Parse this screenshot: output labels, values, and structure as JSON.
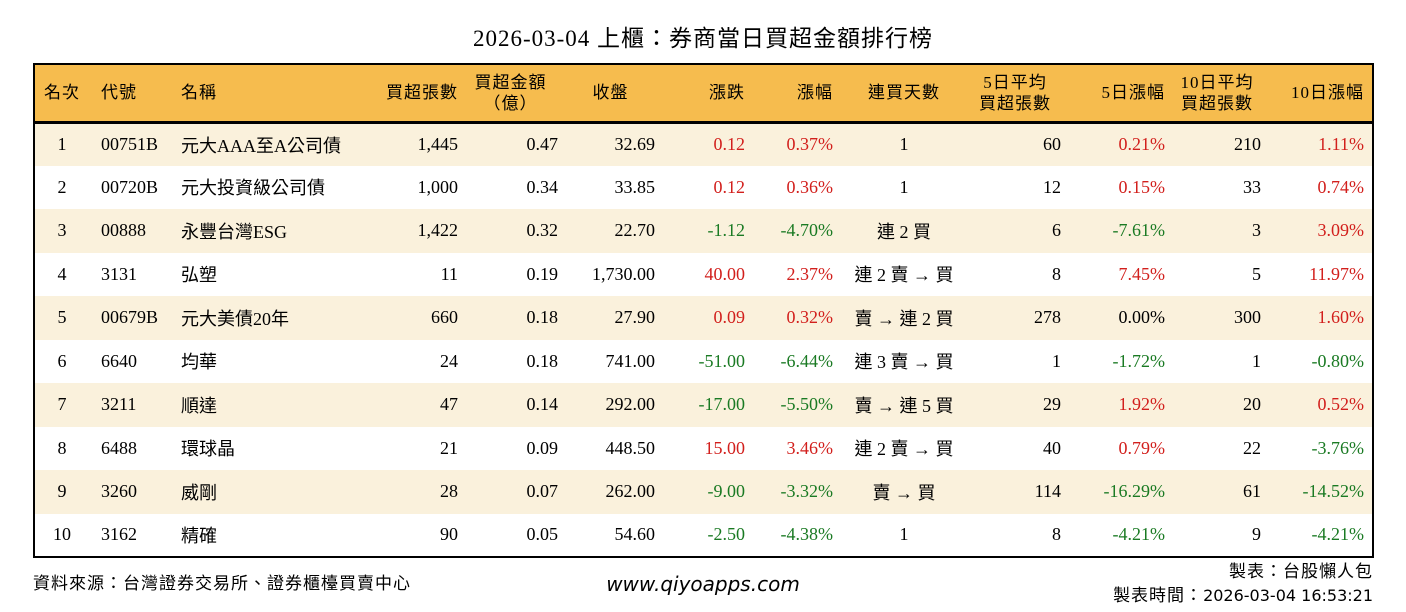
{
  "page_title": "2026-03-04 上櫃：券商當日買超金額排行榜",
  "colors": {
    "header_bg": "#F6BC4E",
    "stripe_bg": "#FAF1DC",
    "up_red": "#D21F1C",
    "down_green": "#1A7A23",
    "border": "#000000"
  },
  "color_codes_legend": {
    "k": "black",
    "r": "up_red",
    "g": "down_green"
  },
  "chart_data": {
    "type": "table",
    "title": "2026-03-04 上櫃：券商當日買超金額排行榜",
    "columns": [
      {
        "key": "rank",
        "label": "名次",
        "align": "center",
        "halign": "center",
        "width": 55,
        "pad_left": 0,
        "pad_right": 0
      },
      {
        "key": "code",
        "label": "代號",
        "align": "left",
        "halign": "left",
        "width": 80,
        "pad_left": 12,
        "pad_right": 0
      },
      {
        "key": "name",
        "label": "名稱",
        "align": "left",
        "halign": "left",
        "width": 192,
        "pad_left": 12,
        "pad_right": 0
      },
      {
        "key": "buy_volume",
        "label": "買超張數",
        "align": "right",
        "halign": "right",
        "width": 102,
        "pad_left": 0,
        "pad_right": 5
      },
      {
        "key": "buy_amount",
        "label": "買超金額\n（億）",
        "align": "right",
        "halign": "center",
        "width": 103,
        "pad_left": 0,
        "pad_right": 8
      },
      {
        "key": "close",
        "label": "收盤",
        "align": "right",
        "halign": "center",
        "width": 95,
        "pad_left": 0,
        "pad_right": 6
      },
      {
        "key": "change",
        "label": "漲跌",
        "align": "right",
        "halign": "right",
        "width": 90,
        "pad_left": 0,
        "pad_right": 6
      },
      {
        "key": "change_pct",
        "label": "漲幅",
        "align": "right",
        "halign": "right",
        "width": 88,
        "pad_left": 0,
        "pad_right": 6
      },
      {
        "key": "streak",
        "label": "連買天數",
        "align": "center",
        "halign": "center",
        "width": 130,
        "pad_left": 0,
        "pad_right": 0
      },
      {
        "key": "avg5_volume",
        "label": "5日平均\n買超張數",
        "align": "right",
        "halign": "center",
        "width": 100,
        "pad_left": 0,
        "pad_right": 8
      },
      {
        "key": "pct5",
        "label": "5日漲幅",
        "align": "right",
        "halign": "right",
        "width": 104,
        "pad_left": 0,
        "pad_right": 8
      },
      {
        "key": "avg10_volume",
        "label": "10日平均\n買超張數",
        "align": "right",
        "halign": "center",
        "width": 96,
        "pad_left": 0,
        "pad_right": 8
      },
      {
        "key": "pct10",
        "label": "10日漲幅",
        "align": "right",
        "halign": "right",
        "width": 104,
        "pad_left": 0,
        "pad_right": 8
      }
    ],
    "rows": [
      [
        [
          "1",
          "k"
        ],
        [
          "00751B",
          "k"
        ],
        [
          "元大AAA至A公司債",
          "k"
        ],
        [
          "1,445",
          "k"
        ],
        [
          "0.47",
          "k"
        ],
        [
          "32.69",
          "k"
        ],
        [
          "0.12",
          "r"
        ],
        [
          "0.37%",
          "r"
        ],
        [
          "1",
          "k"
        ],
        [
          "60",
          "k"
        ],
        [
          "0.21%",
          "r"
        ],
        [
          "210",
          "k"
        ],
        [
          "1.11%",
          "r"
        ]
      ],
      [
        [
          "2",
          "k"
        ],
        [
          "00720B",
          "k"
        ],
        [
          "元大投資級公司債",
          "k"
        ],
        [
          "1,000",
          "k"
        ],
        [
          "0.34",
          "k"
        ],
        [
          "33.85",
          "k"
        ],
        [
          "0.12",
          "r"
        ],
        [
          "0.36%",
          "r"
        ],
        [
          "1",
          "k"
        ],
        [
          "12",
          "k"
        ],
        [
          "0.15%",
          "r"
        ],
        [
          "33",
          "k"
        ],
        [
          "0.74%",
          "r"
        ]
      ],
      [
        [
          "3",
          "k"
        ],
        [
          "00888",
          "k"
        ],
        [
          "永豐台灣ESG",
          "k"
        ],
        [
          "1,422",
          "k"
        ],
        [
          "0.32",
          "k"
        ],
        [
          "22.70",
          "k"
        ],
        [
          "-1.12",
          "g"
        ],
        [
          "-4.70%",
          "g"
        ],
        [
          "連 2 買",
          "k"
        ],
        [
          "6",
          "k"
        ],
        [
          "-7.61%",
          "g"
        ],
        [
          "3",
          "k"
        ],
        [
          "3.09%",
          "r"
        ]
      ],
      [
        [
          "4",
          "k"
        ],
        [
          "3131",
          "k"
        ],
        [
          "弘塑",
          "k"
        ],
        [
          "11",
          "k"
        ],
        [
          "0.19",
          "k"
        ],
        [
          "1,730.00",
          "k"
        ],
        [
          "40.00",
          "r"
        ],
        [
          "2.37%",
          "r"
        ],
        [
          "連 2 賣 → 買",
          "k"
        ],
        [
          "8",
          "k"
        ],
        [
          "7.45%",
          "r"
        ],
        [
          "5",
          "k"
        ],
        [
          "11.97%",
          "r"
        ]
      ],
      [
        [
          "5",
          "k"
        ],
        [
          "00679B",
          "k"
        ],
        [
          "元大美債20年",
          "k"
        ],
        [
          "660",
          "k"
        ],
        [
          "0.18",
          "k"
        ],
        [
          "27.90",
          "k"
        ],
        [
          "0.09",
          "r"
        ],
        [
          "0.32%",
          "r"
        ],
        [
          "賣 → 連 2 買",
          "k"
        ],
        [
          "278",
          "k"
        ],
        [
          "0.00%",
          "k"
        ],
        [
          "300",
          "k"
        ],
        [
          "1.60%",
          "r"
        ]
      ],
      [
        [
          "6",
          "k"
        ],
        [
          "6640",
          "k"
        ],
        [
          "均華",
          "k"
        ],
        [
          "24",
          "k"
        ],
        [
          "0.18",
          "k"
        ],
        [
          "741.00",
          "k"
        ],
        [
          "-51.00",
          "g"
        ],
        [
          "-6.44%",
          "g"
        ],
        [
          "連 3 賣 → 買",
          "k"
        ],
        [
          "1",
          "k"
        ],
        [
          "-1.72%",
          "g"
        ],
        [
          "1",
          "k"
        ],
        [
          "-0.80%",
          "g"
        ]
      ],
      [
        [
          "7",
          "k"
        ],
        [
          "3211",
          "k"
        ],
        [
          "順達",
          "k"
        ],
        [
          "47",
          "k"
        ],
        [
          "0.14",
          "k"
        ],
        [
          "292.00",
          "k"
        ],
        [
          "-17.00",
          "g"
        ],
        [
          "-5.50%",
          "g"
        ],
        [
          "賣 → 連 5 買",
          "k"
        ],
        [
          "29",
          "k"
        ],
        [
          "1.92%",
          "r"
        ],
        [
          "20",
          "k"
        ],
        [
          "0.52%",
          "r"
        ]
      ],
      [
        [
          "8",
          "k"
        ],
        [
          "6488",
          "k"
        ],
        [
          "環球晶",
          "k"
        ],
        [
          "21",
          "k"
        ],
        [
          "0.09",
          "k"
        ],
        [
          "448.50",
          "k"
        ],
        [
          "15.00",
          "r"
        ],
        [
          "3.46%",
          "r"
        ],
        [
          "連 2 賣 → 買",
          "k"
        ],
        [
          "40",
          "k"
        ],
        [
          "0.79%",
          "r"
        ],
        [
          "22",
          "k"
        ],
        [
          "-3.76%",
          "g"
        ]
      ],
      [
        [
          "9",
          "k"
        ],
        [
          "3260",
          "k"
        ],
        [
          "威剛",
          "k"
        ],
        [
          "28",
          "k"
        ],
        [
          "0.07",
          "k"
        ],
        [
          "262.00",
          "k"
        ],
        [
          "-9.00",
          "g"
        ],
        [
          "-3.32%",
          "g"
        ],
        [
          "賣 → 買",
          "k"
        ],
        [
          "114",
          "k"
        ],
        [
          "-16.29%",
          "g"
        ],
        [
          "61",
          "k"
        ],
        [
          "-14.52%",
          "g"
        ]
      ],
      [
        [
          "10",
          "k"
        ],
        [
          "3162",
          "k"
        ],
        [
          "精確",
          "k"
        ],
        [
          "90",
          "k"
        ],
        [
          "0.05",
          "k"
        ],
        [
          "54.60",
          "k"
        ],
        [
          "-2.50",
          "g"
        ],
        [
          "-4.38%",
          "g"
        ],
        [
          "1",
          "k"
        ],
        [
          "8",
          "k"
        ],
        [
          "-4.21%",
          "g"
        ],
        [
          "9",
          "k"
        ],
        [
          "-4.21%",
          "g"
        ]
      ]
    ]
  },
  "footer": {
    "source": "資料來源：台灣證券交易所、證券櫃檯買賣中心",
    "website": "www.qiyoapps.com",
    "maker": "製表：台股懶人包",
    "made_time_label": "製表時間：",
    "made_time_value": "2026-03-04 16:53:21"
  }
}
